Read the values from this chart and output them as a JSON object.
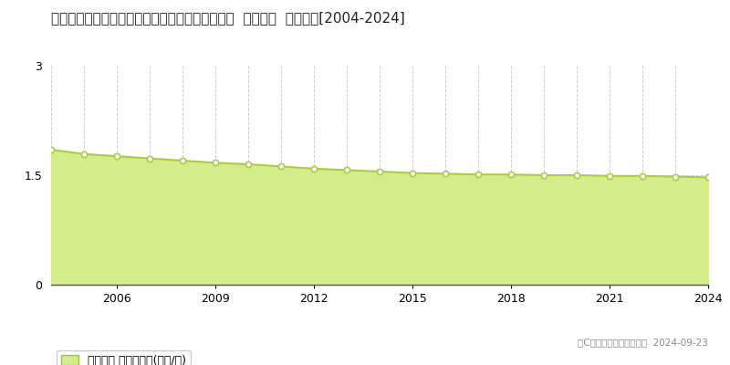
{
  "title": "青森県三戸郡五戸町大字倉石石沢字石沢４８番２  基準地価  地価推移[2004-2024]",
  "years": [
    2004,
    2005,
    2006,
    2007,
    2008,
    2009,
    2010,
    2011,
    2012,
    2013,
    2014,
    2015,
    2016,
    2017,
    2018,
    2019,
    2020,
    2021,
    2022,
    2023,
    2024
  ],
  "values": [
    1.85,
    1.79,
    1.76,
    1.73,
    1.7,
    1.67,
    1.65,
    1.62,
    1.59,
    1.57,
    1.55,
    1.53,
    1.52,
    1.51,
    1.51,
    1.5,
    1.5,
    1.49,
    1.49,
    1.48,
    1.47
  ],
  "ylim": [
    0,
    3.0
  ],
  "yticks": [
    0,
    1.5,
    3
  ],
  "fill_color": "#d4ed8a",
  "line_color": "#aacc44",
  "marker_color": "#ffffff",
  "marker_edge_color": "#aacc44",
  "grid_color": "#cccccc",
  "background_color": "#ffffff",
  "legend_label": "基準地価 平均坪単価(万円/坪)",
  "copyright_text": "（C）土地価格ドットコム  2024-09-23",
  "xtick_years": [
    2006,
    2009,
    2012,
    2015,
    2018,
    2021,
    2024
  ],
  "title_fontsize": 11,
  "axis_fontsize": 9,
  "legend_fontsize": 9
}
